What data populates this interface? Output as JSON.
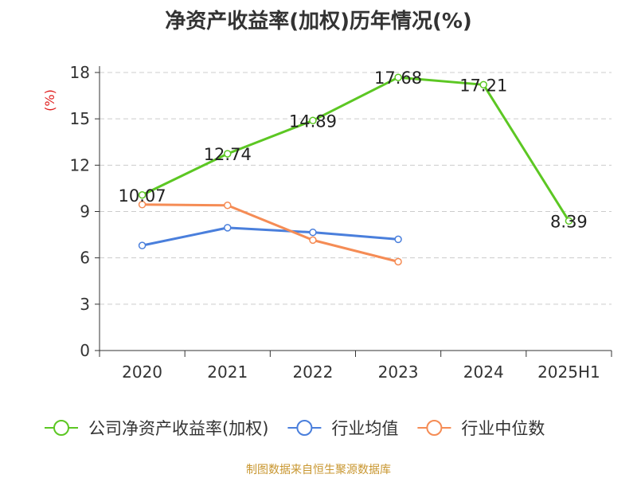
{
  "chart_data": {
    "type": "line",
    "title": "净资产收益率(加权)历年情况(%)",
    "ylabel": "(%)",
    "xlabel": "",
    "categories": [
      "2020",
      "2021",
      "2022",
      "2023",
      "2024",
      "2025H1"
    ],
    "ylim": [
      0,
      18
    ],
    "yticks": [
      0,
      3,
      6,
      9,
      12,
      15,
      18
    ],
    "grid": "horizontal dashed",
    "legend_position": "bottom",
    "series": [
      {
        "name": "公司净资产收益率(加权)",
        "color": "#5cc723",
        "values": [
          10.07,
          12.74,
          14.89,
          17.68,
          17.21,
          8.39
        ],
        "labels": [
          "10.07",
          "12.74",
          "14.89",
          "17.68",
          "17.21",
          "8.39"
        ]
      },
      {
        "name": "行业均值",
        "color": "#4a7fdc",
        "values": [
          6.8,
          7.95,
          7.65,
          7.2,
          null,
          null
        ]
      },
      {
        "name": "行业中位数",
        "color": "#f58c55",
        "values": [
          9.45,
          9.4,
          7.15,
          5.75,
          null,
          null
        ]
      }
    ]
  },
  "source": "制图数据来自恒生聚源数据库",
  "colors": {
    "axis": "#333333",
    "grid": "#cccccc",
    "ylabel": "#e02020",
    "source": "#c8962f"
  }
}
